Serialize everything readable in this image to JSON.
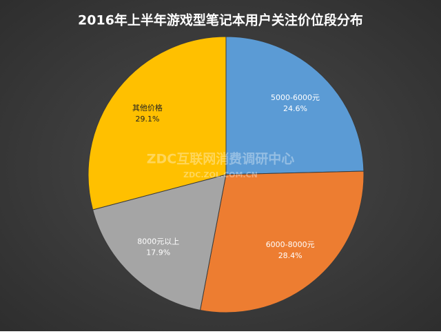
{
  "chart_data": {
    "type": "pie",
    "title": "2016年上半年游戏型笔记本用户关注价位段分布",
    "categories": [
      "5000-6000元",
      "6000-8000元",
      "8000元以上",
      "其他价格"
    ],
    "values": [
      24.6,
      28.4,
      17.9,
      29.1
    ],
    "value_labels": [
      "24.6%",
      "28.4%",
      "17.9%",
      "29.1%"
    ],
    "colors": [
      "#5b9bd5",
      "#ed7d31",
      "#a5a5a5",
      "#ffc000"
    ],
    "label_colors": [
      "#ffffff",
      "#ffffff",
      "#ffffff",
      "#222222"
    ],
    "watermark": "ZDC互联网消费调研中心",
    "watermark_url": "ZDC.ZOL.COM.CN"
  }
}
